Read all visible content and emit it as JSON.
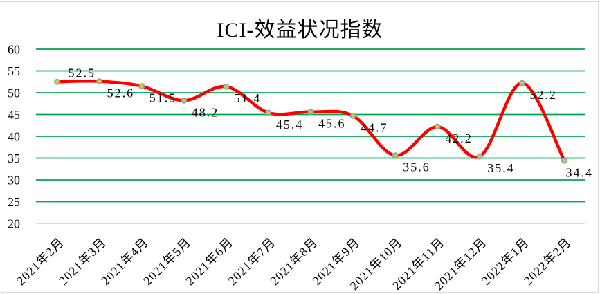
{
  "chart": {
    "title": "ICI-效益状况指数"
  },
  "chart_data": {
    "type": "line",
    "title": "ICI-效益状况指数",
    "categories": [
      "2021年2月",
      "2021年3月",
      "2021年4月",
      "2021年5月",
      "2021年6月",
      "2021年7月",
      "2021年8月",
      "2021年9月",
      "2021年10月",
      "2021年11月",
      "2021年12月",
      "2022年1月",
      "2022年2月"
    ],
    "series": [
      {
        "name": "ICI-效益状况指数",
        "values": [
          52.5,
          52.6,
          51.5,
          48.2,
          51.4,
          45.4,
          45.6,
          44.7,
          35.6,
          42.2,
          35.4,
          52.2,
          34.4
        ]
      }
    ],
    "data_labels": [
      "52.5",
      "52.6",
      "51.5",
      "48.2",
      "51.4",
      "45.4",
      "45.6",
      "44.7",
      "35.6",
      "42.2",
      "35.4",
      "52.2",
      "34.4"
    ],
    "xlabel": "",
    "ylabel": "",
    "ylim": [
      20,
      60
    ],
    "yticks": [
      20,
      25,
      30,
      35,
      40,
      45,
      50,
      55,
      60
    ],
    "grid": "horizontal",
    "smooth_line": true,
    "legend_position": "none",
    "x_label_rotation_deg": -45,
    "colors": {
      "line": "#fe0000",
      "marker_fill": "#cfd028",
      "marker_border": "#7da0ca",
      "gridline": "#00a550",
      "axis_line": "#c9c9c9",
      "text": "#000000",
      "chart_border": "#d9d9d9",
      "background": "#ffffff"
    }
  }
}
